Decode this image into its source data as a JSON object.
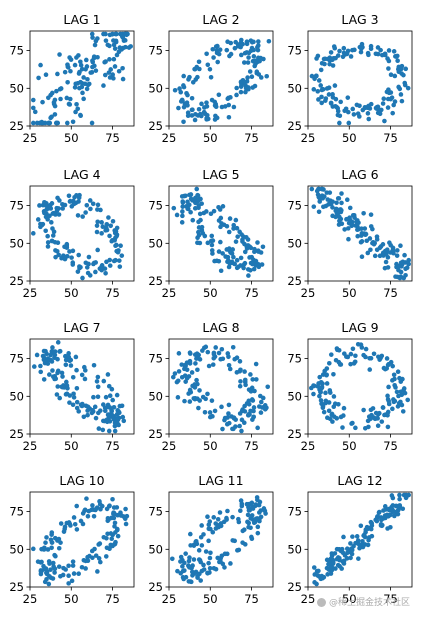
{
  "chart_data": [
    {
      "type": "scatter",
      "title": "LAG 1",
      "xlim": [
        25,
        88
      ],
      "ylim": [
        25,
        88
      ],
      "xticks": [
        25,
        50,
        75
      ],
      "yticks": [
        25,
        50,
        75
      ],
      "pattern": "diag-pos",
      "spread": 13,
      "n": 150,
      "x": [],
      "y": []
    },
    {
      "type": "scatter",
      "title": "LAG 2",
      "xlim": [
        25,
        88
      ],
      "ylim": [
        25,
        88
      ],
      "xticks": [
        25,
        50,
        75
      ],
      "yticks": [
        25,
        50,
        75
      ],
      "pattern": "ellipse-pos",
      "rx": 28,
      "ry": 14,
      "n": 150,
      "x": [],
      "y": []
    },
    {
      "type": "scatter",
      "title": "LAG 3",
      "xlim": [
        25,
        88
      ],
      "ylim": [
        25,
        88
      ],
      "xticks": [
        25,
        50,
        75
      ],
      "yticks": [
        25,
        50,
        75
      ],
      "pattern": "ring",
      "rx": 24,
      "ry": 22,
      "n": 150,
      "x": [],
      "y": []
    },
    {
      "type": "scatter",
      "title": "LAG 4",
      "xlim": [
        25,
        88
      ],
      "ylim": [
        25,
        88
      ],
      "xticks": [
        25,
        50,
        75
      ],
      "yticks": [
        25,
        50,
        75
      ],
      "pattern": "ellipse-neg",
      "rx": 26,
      "ry": 16,
      "n": 150,
      "x": [],
      "y": []
    },
    {
      "type": "scatter",
      "title": "LAG 5",
      "xlim": [
        25,
        88
      ],
      "ylim": [
        25,
        88
      ],
      "xticks": [
        25,
        50,
        75
      ],
      "yticks": [
        25,
        50,
        75
      ],
      "pattern": "ellipse-neg",
      "rx": 30,
      "ry": 9,
      "n": 150,
      "x": [],
      "y": []
    },
    {
      "type": "scatter",
      "title": "LAG 6",
      "xlim": [
        25,
        88
      ],
      "ylim": [
        25,
        88
      ],
      "xticks": [
        25,
        50,
        75
      ],
      "yticks": [
        25,
        50,
        75
      ],
      "pattern": "diag-neg",
      "spread": 5,
      "n": 150,
      "x": [],
      "y": []
    },
    {
      "type": "scatter",
      "title": "LAG 7",
      "xlim": [
        25,
        88
      ],
      "ylim": [
        25,
        88
      ],
      "xticks": [
        25,
        50,
        75
      ],
      "yticks": [
        25,
        50,
        75
      ],
      "pattern": "ellipse-neg",
      "rx": 30,
      "ry": 9,
      "n": 150,
      "x": [],
      "y": []
    },
    {
      "type": "scatter",
      "title": "LAG 8",
      "xlim": [
        25,
        88
      ],
      "ylim": [
        25,
        88
      ],
      "xticks": [
        25,
        50,
        75
      ],
      "yticks": [
        25,
        50,
        75
      ],
      "pattern": "ellipse-neg",
      "rx": 26,
      "ry": 16,
      "n": 150,
      "x": [],
      "y": []
    },
    {
      "type": "scatter",
      "title": "LAG 9",
      "xlim": [
        25,
        88
      ],
      "ylim": [
        25,
        88
      ],
      "xticks": [
        25,
        50,
        75
      ],
      "yticks": [
        25,
        50,
        75
      ],
      "pattern": "ring",
      "rx": 24,
      "ry": 22,
      "n": 150,
      "x": [],
      "y": []
    },
    {
      "type": "scatter",
      "title": "LAG 10",
      "xlim": [
        25,
        88
      ],
      "ylim": [
        25,
        88
      ],
      "xticks": [
        25,
        50,
        75
      ],
      "yticks": [
        25,
        50,
        75
      ],
      "pattern": "ellipse-pos",
      "rx": 28,
      "ry": 14,
      "n": 150,
      "x": [],
      "y": []
    },
    {
      "type": "scatter",
      "title": "LAG 11",
      "xlim": [
        25,
        88
      ],
      "ylim": [
        25,
        88
      ],
      "xticks": [
        25,
        50,
        75
      ],
      "yticks": [
        25,
        50,
        75
      ],
      "pattern": "ellipse-pos",
      "rx": 30,
      "ry": 9,
      "n": 150,
      "x": [],
      "y": []
    },
    {
      "type": "scatter",
      "title": "LAG 12",
      "xlim": [
        25,
        88
      ],
      "ylim": [
        25,
        88
      ],
      "xticks": [
        25,
        50,
        75
      ],
      "yticks": [
        25,
        50,
        75
      ],
      "pattern": "diag-pos",
      "spread": 4,
      "n": 150,
      "x": [],
      "y": []
    }
  ],
  "marker_color": "#1f77b4",
  "watermark": "@稀土掘金技术社区"
}
